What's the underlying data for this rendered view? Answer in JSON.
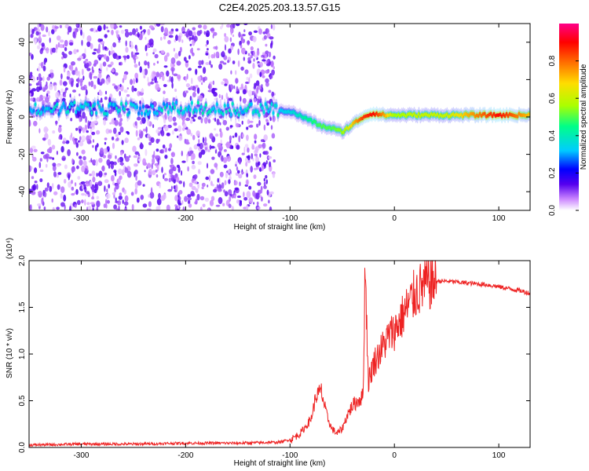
{
  "title": "C2E4.2025.203.13.57.G15",
  "chart_data": [
    {
      "type": "heatmap",
      "title": "C2E4.2025.203.13.57.G15",
      "xlabel": "Height of straight line (km)",
      "ylabel": "Frequency (Hz)",
      "xlim": [
        -350,
        130
      ],
      "ylim": [
        -50,
        50
      ],
      "xticks": [
        -300,
        -200,
        -100,
        0,
        100
      ],
      "yticks": [
        -40,
        -20,
        0,
        20,
        40
      ],
      "colorbar": {
        "label": "Normalized spectral amplitude",
        "range": [
          0,
          1
        ],
        "ticks": [
          "0.0",
          "0.2",
          "0.4",
          "0.6",
          "0.8"
        ],
        "colormap": [
          "#ffffff",
          "#cc88ff",
          "#5500ee",
          "#0000ff",
          "#00ccff",
          "#00ff88",
          "#aaff00",
          "#ffdd00",
          "#ff6600",
          "#ff0000",
          "#ff0088"
        ]
      },
      "dominant_frequency_track": {
        "x": [
          -350,
          -300,
          -250,
          -200,
          -150,
          -120,
          -100,
          -80,
          -70,
          -60,
          -50,
          -40,
          -30,
          -20,
          -10,
          0,
          20,
          50,
          100,
          130
        ],
        "y": [
          4,
          5,
          4,
          5,
          4,
          4,
          3,
          -2,
          -5,
          -6,
          -8,
          -4,
          0,
          2,
          1,
          1,
          1,
          1,
          1,
          1
        ],
        "peak_amplitude": [
          0.25,
          0.3,
          0.28,
          0.3,
          0.3,
          0.3,
          0.35,
          0.45,
          0.5,
          0.5,
          0.55,
          0.7,
          0.85,
          0.9,
          0.75,
          0.55,
          0.6,
          0.6,
          0.9,
          0.7
        ]
      },
      "scattered_noise_region": {
        "x_range": [
          -350,
          -115
        ],
        "y_range": [
          -50,
          50
        ]
      }
    },
    {
      "type": "line",
      "xlabel": "Height of straight line (km)",
      "ylabel": "SNR (10 * v/v)",
      "y_multiplier": "(x10⁴)",
      "xlim": [
        -350,
        130
      ],
      "ylim": [
        0,
        2.0
      ],
      "xticks": [
        -300,
        -200,
        -100,
        0,
        100
      ],
      "yticks": [
        "0.0",
        "0.5",
        "1.0",
        "1.5",
        "2.0"
      ],
      "color": "#ee2222",
      "series": [
        {
          "x": [
            -350,
            -300,
            -250,
            -200,
            -150,
            -110,
            -100,
            -90,
            -80,
            -75,
            -70,
            -65,
            -60,
            -55,
            -50,
            -45,
            -40,
            -35,
            -30,
            -28,
            -25,
            -20,
            -15,
            -10,
            -5,
            0,
            5,
            10,
            15,
            20,
            30,
            40,
            50,
            60,
            70,
            80,
            90,
            100,
            110,
            120,
            130
          ],
          "y": [
            0.02,
            0.03,
            0.03,
            0.04,
            0.04,
            0.05,
            0.08,
            0.15,
            0.3,
            0.55,
            0.6,
            0.35,
            0.2,
            0.15,
            0.2,
            0.35,
            0.45,
            0.5,
            0.55,
            2.0,
            0.7,
            0.9,
            1.0,
            1.1,
            1.2,
            1.25,
            1.35,
            1.45,
            1.55,
            1.65,
            1.75,
            1.78,
            1.78,
            1.77,
            1.76,
            1.75,
            1.74,
            1.72,
            1.7,
            1.68,
            1.65
          ]
        }
      ]
    }
  ]
}
